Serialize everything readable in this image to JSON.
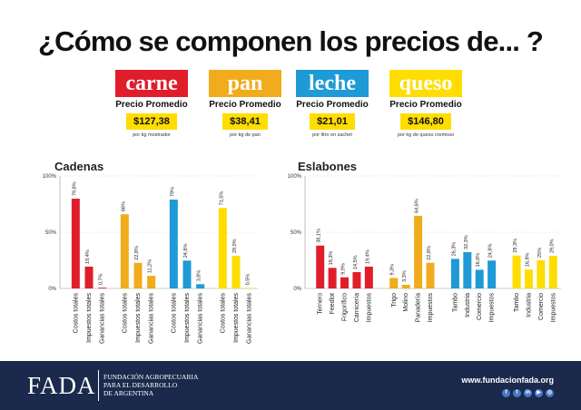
{
  "title": "¿Cómo se componen los precios de... ?",
  "products": [
    {
      "name": "carne",
      "label": "Precio Promedio",
      "price": "$127,38",
      "unit": "por kg mostrador",
      "color": "#e01e2b"
    },
    {
      "name": "pan",
      "label": "Precio Promedio",
      "price": "$38,41",
      "unit": "por kg de pan",
      "color": "#f0ac1c"
    },
    {
      "name": "leche",
      "label": "Precio Promedio",
      "price": "$21,01",
      "unit": "por litro en sachet",
      "color": "#1e9ad6"
    },
    {
      "name": "queso",
      "label": "Precio Promedio",
      "price": "$146,80",
      "unit": "por kg de queso cremoso",
      "color": "#ffdd00"
    }
  ],
  "chart_data": [
    {
      "type": "bar",
      "title": "Cadenas",
      "ylim": [
        0,
        100
      ],
      "yticks": [
        "0%",
        "50%",
        "100%"
      ],
      "groups": [
        {
          "product": "carne",
          "color": "#e01e2b",
          "categories": [
            "Costos totales",
            "Impuestos totales",
            "Ganancias totales"
          ],
          "values": [
            79.8,
            19.4,
            0.7
          ],
          "labels": [
            "79,8%",
            "19,4%",
            "0,7%"
          ]
        },
        {
          "product": "pan",
          "color": "#f0ac1c",
          "categories": [
            "Costos totales",
            "Impuestos totales",
            "Ganancias totales"
          ],
          "values": [
            66,
            22.8,
            11.2
          ],
          "labels": [
            "66%",
            "22,8%",
            "11,2%"
          ]
        },
        {
          "product": "leche",
          "color": "#1e9ad6",
          "categories": [
            "Costos totales",
            "Impuestos totales",
            "Ganancias totales"
          ],
          "values": [
            79,
            24.8,
            3.8
          ],
          "labels": [
            "79%",
            "24,8%",
            "3,8%"
          ]
        },
        {
          "product": "queso",
          "color": "#ffdd00",
          "categories": [
            "Costos totales",
            "Impuestos totales",
            "Ganancias totales"
          ],
          "values": [
            71.5,
            29,
            0.5
          ],
          "labels": [
            "71,5%",
            "29,0%",
            "0,5%"
          ]
        }
      ]
    },
    {
      "type": "bar",
      "title": "Eslabones",
      "ylim": [
        0,
        100
      ],
      "yticks": [
        "0%",
        "50%",
        "100%"
      ],
      "groups": [
        {
          "product": "carne",
          "color": "#e01e2b",
          "categories": [
            "Ternero",
            "Feedlot",
            "Frigorífico",
            "Carnicería",
            "Impuestos"
          ],
          "values": [
            38.1,
            18.3,
            9.9,
            14.5,
            19.4
          ],
          "labels": [
            "38,1%",
            "18,3%",
            "9,9%",
            "14,5%",
            "19,4%"
          ]
        },
        {
          "product": "pan",
          "color": "#f0ac1c",
          "categories": [
            "Trigo",
            "Molino",
            "Panadería",
            "Impuestos"
          ],
          "values": [
            9.3,
            3.3,
            64.6,
            22.8
          ],
          "labels": [
            "9,3%",
            "3,3%",
            "64,6%",
            "22,8%"
          ]
        },
        {
          "product": "leche",
          "color": "#1e9ad6",
          "categories": [
            "Tambo",
            "Industria",
            "Comercio",
            "Impuestos"
          ],
          "values": [
            26.3,
            32.3,
            16.6,
            24.8
          ],
          "labels": [
            "26,3%",
            "32,3%",
            "16,6%",
            "24,8%"
          ]
        },
        {
          "product": "queso",
          "color": "#ffdd00",
          "categories": [
            "Tambo",
            "Industria",
            "Comercio",
            "Impuestos"
          ],
          "values": [
            29.3,
            16.8,
            25,
            29
          ],
          "labels": [
            "29,3%",
            "16,8%",
            "25%",
            "29,0%"
          ]
        }
      ]
    }
  ],
  "footer": {
    "logo": "FADA",
    "org": "FUNDACIÓN AGROPECUARIA\nPARA EL DESARROLLO\nDE ARGENTINA",
    "website": "www.fundacionfada.org",
    "social_icons": [
      "facebook-icon",
      "twitter-icon",
      "linkedin-icon",
      "youtube-icon",
      "instagram-icon"
    ]
  }
}
